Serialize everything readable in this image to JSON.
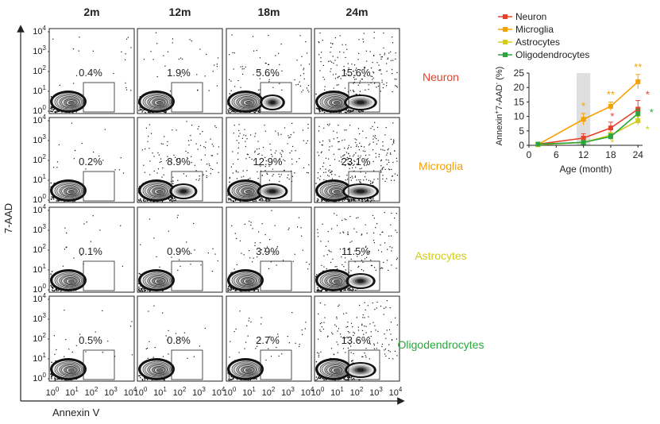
{
  "figure": {
    "time_points": [
      "2m",
      "12m",
      "18m",
      "24m"
    ],
    "cell_types": [
      {
        "name": "Neuron",
        "color": "#e8412b"
      },
      {
        "name": "Microglia",
        "color": "#f5a100"
      },
      {
        "name": "Astrocytes",
        "color": "#d4cc1a"
      },
      {
        "name": "Oligodendrocytes",
        "color": "#2aa63c"
      }
    ],
    "y_axis_label": "7-AAD",
    "x_axis_label": "Annexin V",
    "flow_tick_labels": [
      "10",
      "10",
      "10",
      "10",
      "10"
    ],
    "flow_tick_exponents": [
      "0",
      "1",
      "2",
      "3",
      "4"
    ]
  },
  "chart_data": [
    {
      "type": "flow-cytometry-grid",
      "rows": [
        "Neuron",
        "Microglia",
        "Astrocytes",
        "Oligodendrocytes"
      ],
      "columns": [
        "2m",
        "12m",
        "18m",
        "24m"
      ],
      "gate_percentages": [
        [
          "0.4%",
          "1.9%",
          "5.6%",
          "15.6%"
        ],
        [
          "0.2%",
          "8.9%",
          "12.9%",
          "23.1%"
        ],
        [
          "0.1%",
          "0.9%",
          "3.9%",
          "11.5%"
        ],
        [
          "0.5%",
          "0.8%",
          "2.7%",
          "13.6%"
        ]
      ],
      "xlabel": "Annexin V",
      "ylabel": "7-AAD",
      "axis_scale": "log",
      "axis_range": [
        1,
        10000
      ]
    },
    {
      "type": "line",
      "x": [
        2,
        12,
        18,
        24
      ],
      "xlabel": "Age (month)",
      "ylabel_main": "Annexin",
      "ylabel_sup1": "+",
      "ylabel_mid": "7-AAD",
      "ylabel_sup2": "-",
      "ylabel_end": " (%)",
      "xlim": [
        0,
        25
      ],
      "ylim": [
        0,
        25
      ],
      "xticks": [
        0,
        6,
        12,
        18,
        24
      ],
      "yticks": [
        0,
        5,
        10,
        15,
        20,
        25
      ],
      "shaded_region": [
        10.5,
        13.5
      ],
      "legend_position": "top-left",
      "series": [
        {
          "name": "Neuron",
          "color": "#e8412b",
          "values": [
            0.4,
            2.5,
            6.0,
            12.5
          ],
          "errors": [
            0.2,
            1.5,
            2.0,
            3.0
          ],
          "significance": [
            "",
            "",
            "*",
            "*"
          ]
        },
        {
          "name": "Microglia",
          "color": "#f5a100",
          "values": [
            0.3,
            9.0,
            13.5,
            22.0
          ],
          "errors": [
            0.2,
            2.0,
            1.5,
            2.5
          ],
          "significance": [
            "",
            "*",
            "**",
            "**"
          ]
        },
        {
          "name": "Astrocytes",
          "color": "#d4cc1a",
          "values": [
            0.2,
            1.0,
            3.5,
            8.5
          ],
          "errors": [
            0.1,
            0.5,
            1.0,
            1.5
          ],
          "significance": [
            "",
            "",
            "*",
            "*"
          ]
        },
        {
          "name": "Oligodendrocytes",
          "color": "#2aa63c",
          "values": [
            0.4,
            1.0,
            3.0,
            11.0
          ],
          "errors": [
            0.2,
            0.5,
            1.0,
            1.5
          ],
          "significance": [
            "",
            "",
            "",
            "*"
          ]
        }
      ]
    }
  ]
}
